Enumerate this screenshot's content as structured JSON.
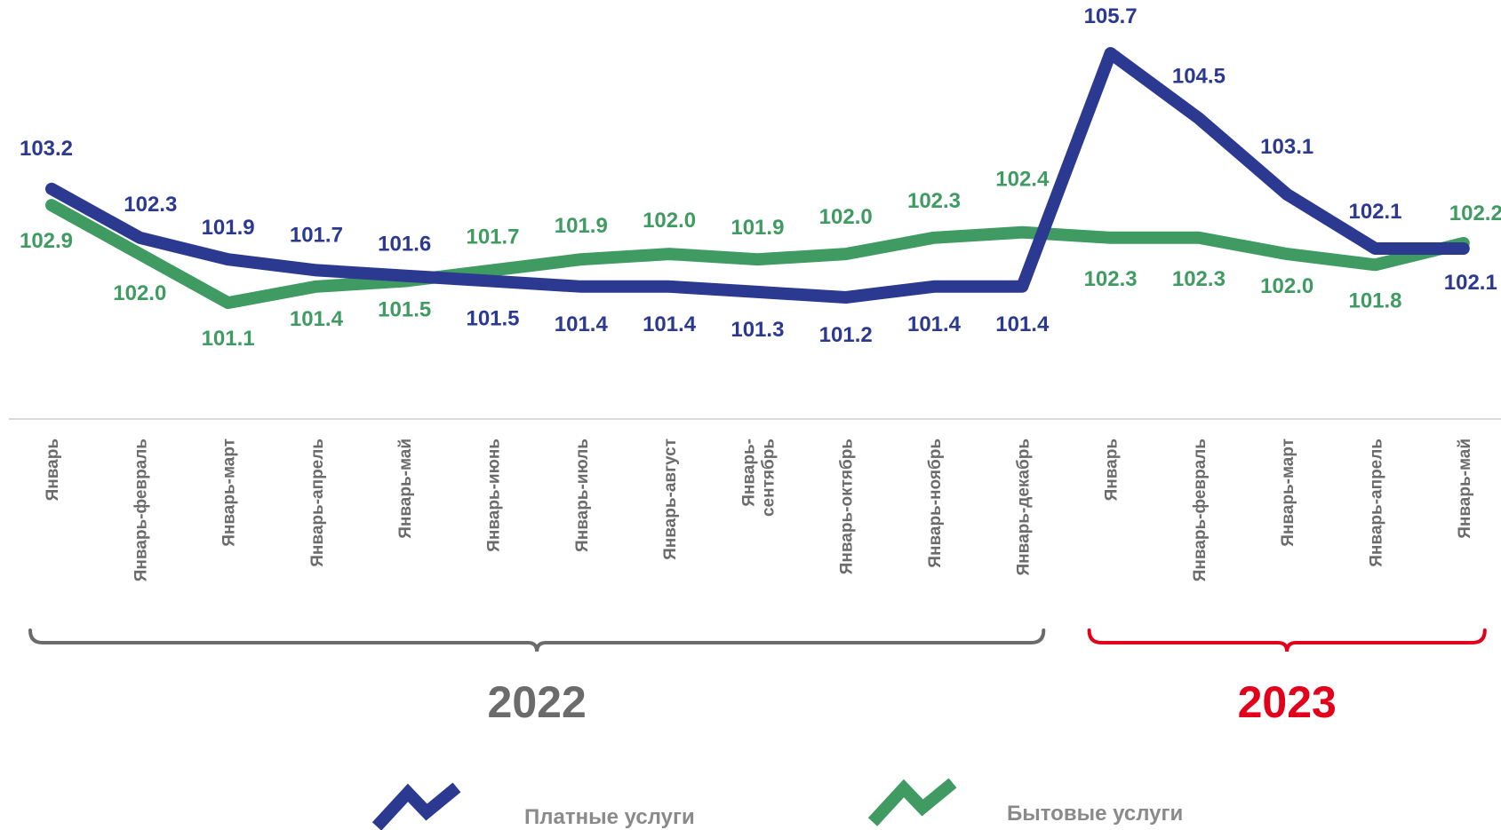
{
  "chart_data": {
    "type": "line",
    "categories": [
      "Январь",
      "Январь-февраль",
      "Январь-март",
      "Январь-апрель",
      "Январь-май",
      "Январь-июнь",
      "Январь-июль",
      "Январь-август",
      "Январь-сентябрь",
      "Январь-октябрь",
      "Январь-ноябрь",
      "Январь-декабрь",
      "Январь",
      "Январь-февраль",
      "Январь-март",
      "Январь-апрель",
      "Январь-май"
    ],
    "category_lines": [
      [
        "Январь"
      ],
      [
        "Январь-февраль"
      ],
      [
        "Январь-март"
      ],
      [
        "Январь-апрель"
      ],
      [
        "Январь-май"
      ],
      [
        "Январь-июнь"
      ],
      [
        "Январь-июль"
      ],
      [
        "Январь-август"
      ],
      [
        "Январь-",
        "сентябрь"
      ],
      [
        "Январь-октябрь"
      ],
      [
        "Январь-ноябрь"
      ],
      [
        "Январь-декабрь"
      ],
      [
        "Январь"
      ],
      [
        "Январь-февраль"
      ],
      [
        "Январь-март"
      ],
      [
        "Январь-апрель"
      ],
      [
        "Январь-май"
      ]
    ],
    "groups": [
      {
        "label": "2022",
        "from": 0,
        "to": 11,
        "color": "#6b6b6b"
      },
      {
        "label": "2023",
        "from": 12,
        "to": 16,
        "color": "#e2001a"
      }
    ],
    "series": [
      {
        "name": "Платные услуги",
        "color": "#2b3990",
        "values": [
          103.2,
          102.3,
          101.9,
          101.7,
          101.6,
          101.5,
          101.4,
          101.4,
          101.3,
          101.2,
          101.4,
          101.4,
          105.7,
          104.5,
          103.1,
          102.1,
          102.1
        ],
        "labels": [
          "103.2",
          "102.3",
          "101.9",
          "101.7",
          "101.6",
          "101.5",
          "101.4",
          "101.4",
          "101.3",
          "101.2",
          "101.4",
          "101.4",
          "105.7",
          "104.5",
          "103.1",
          "102.1",
          "102.1"
        ]
      },
      {
        "name": "Бытовые услуги",
        "color": "#3f9b62",
        "values": [
          102.9,
          102.0,
          101.1,
          101.4,
          101.5,
          101.7,
          101.9,
          102.0,
          101.9,
          102.0,
          102.3,
          102.4,
          102.3,
          102.3,
          102.0,
          101.8,
          102.2
        ],
        "labels": [
          "102.9",
          "102.0",
          "101.1",
          "101.4",
          "101.5",
          "101.7",
          "101.9",
          "102.0",
          "101.9",
          "102.0",
          "102.3",
          "102.4",
          "102.3",
          "102.3",
          "102.0",
          "101.8",
          "102.2"
        ]
      }
    ],
    "legend_position": "bottom",
    "grid": false
  }
}
